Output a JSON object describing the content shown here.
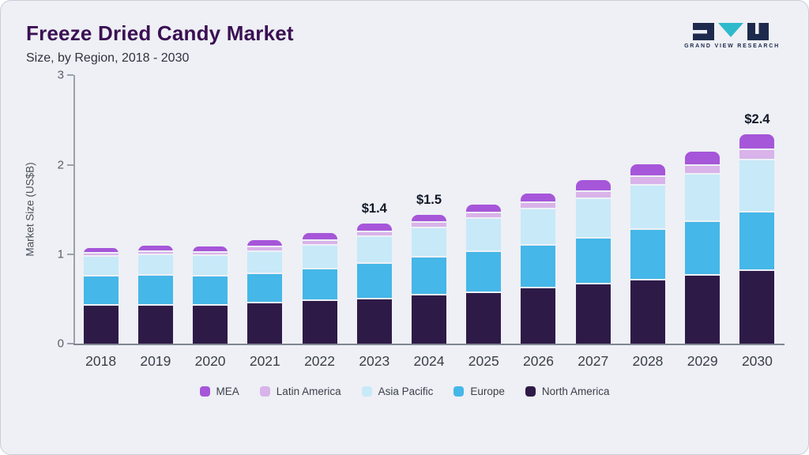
{
  "header": {
    "title": "Freeze Dried Candy Market",
    "subtitle": "Size, by Region, 2018 - 2030",
    "logo_text": "GRAND VIEW RESEARCH"
  },
  "colors": {
    "card-bg": "#eef0f5",
    "card-border": "#c9cdd6",
    "title": "#3b1053",
    "subtitle": "#34303f",
    "axis": "#9aa0ab",
    "baseline": "#7f8590",
    "tick-text": "#585d68",
    "xlabel-text": "#3a3f49",
    "ylabel-text": "#4b505a",
    "annotation-text": "#111827",
    "legend-text": "#3b3f4a",
    "logo-navy": "#1e2a4d",
    "logo-teal": "#2fb9cd"
  },
  "chart_data": {
    "type": "bar",
    "stacked": true,
    "title": "Freeze Dried Candy Market Size, by Region, 2018 - 2030",
    "ylabel": "Market Size (US$B)",
    "units": "US$B",
    "ylim": [
      0,
      3
    ],
    "yticks": [
      0,
      1,
      2,
      3
    ],
    "grid": false,
    "legend_position": "bottom",
    "categories": [
      "2018",
      "2019",
      "2020",
      "2021",
      "2022",
      "2023",
      "2024",
      "2025",
      "2026",
      "2027",
      "2028",
      "2029",
      "2030"
    ],
    "series": [
      {
        "name": "North America",
        "color": "#2e1a47",
        "values": [
          0.43,
          0.43,
          0.43,
          0.45,
          0.48,
          0.5,
          0.54,
          0.57,
          0.62,
          0.66,
          0.71,
          0.76,
          0.81
        ]
      },
      {
        "name": "Europe",
        "color": "#45b7e8",
        "values": [
          0.32,
          0.33,
          0.32,
          0.33,
          0.35,
          0.39,
          0.42,
          0.46,
          0.48,
          0.52,
          0.56,
          0.6,
          0.66
        ]
      },
      {
        "name": "Asia Pacific",
        "color": "#c7e9f8",
        "values": [
          0.22,
          0.23,
          0.23,
          0.25,
          0.27,
          0.3,
          0.33,
          0.37,
          0.4,
          0.44,
          0.5,
          0.53,
          0.58
        ]
      },
      {
        "name": "Latin America",
        "color": "#d9b3ea",
        "values": [
          0.04,
          0.04,
          0.04,
          0.05,
          0.05,
          0.06,
          0.06,
          0.06,
          0.07,
          0.08,
          0.09,
          0.1,
          0.11
        ]
      },
      {
        "name": "MEA",
        "color": "#a656d9",
        "values": [
          0.06,
          0.07,
          0.07,
          0.08,
          0.09,
          0.09,
          0.09,
          0.1,
          0.11,
          0.13,
          0.14,
          0.16,
          0.18
        ]
      }
    ],
    "legend_order": [
      "MEA",
      "Latin America",
      "Asia Pacific",
      "Europe",
      "North America"
    ],
    "annotations": [
      {
        "category": "2023",
        "label": "$1.4"
      },
      {
        "category": "2024",
        "label": "$1.5"
      },
      {
        "category": "2030",
        "label": "$2.4"
      }
    ]
  }
}
